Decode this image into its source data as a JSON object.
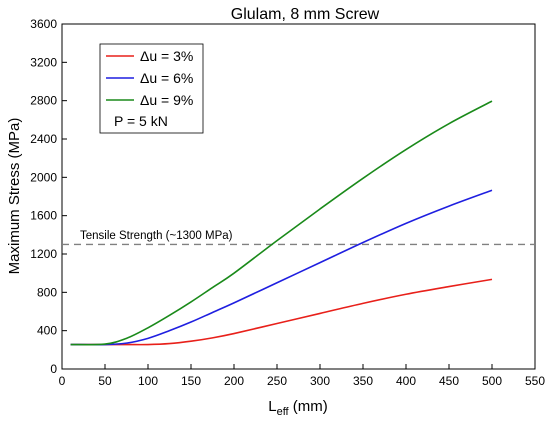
{
  "chart_data": {
    "type": "line",
    "title": "Glulam, 8 mm Screw",
    "xlabel_main": "L",
    "xlabel_sub": "eff",
    "xlabel_unit": " (mm)",
    "ylabel": "Maximum Stress (MPa)",
    "xlim": [
      0,
      550
    ],
    "ylim": [
      0,
      3600
    ],
    "xticks": [
      0,
      50,
      100,
      150,
      200,
      250,
      300,
      350,
      400,
      450,
      500,
      550
    ],
    "yticks": [
      0,
      400,
      800,
      1200,
      1600,
      2000,
      2400,
      2800,
      3200,
      3600
    ],
    "grid": false,
    "legend_position": "top-left",
    "series": [
      {
        "name": "Δu = 3%",
        "color": "#e8201a",
        "x": [
          10,
          50,
          75,
          100,
          125,
          150,
          175,
          200,
          250,
          300,
          350,
          400,
          450,
          500
        ],
        "y": [
          255,
          255,
          255,
          255,
          265,
          290,
          325,
          370,
          475,
          580,
          685,
          780,
          860,
          935
        ]
      },
      {
        "name": "Δu = 6%",
        "color": "#1f1fe0",
        "x": [
          10,
          50,
          75,
          100,
          125,
          150,
          175,
          200,
          250,
          300,
          350,
          400,
          450,
          500
        ],
        "y": [
          255,
          255,
          270,
          320,
          400,
          490,
          590,
          690,
          900,
          1110,
          1320,
          1520,
          1700,
          1865
        ]
      },
      {
        "name": "Δu = 9%",
        "color": "#1a8a1a",
        "x": [
          10,
          50,
          75,
          100,
          125,
          150,
          175,
          200,
          250,
          300,
          350,
          400,
          450,
          500
        ],
        "y": [
          255,
          260,
          320,
          430,
          560,
          700,
          850,
          1000,
          1340,
          1670,
          1990,
          2290,
          2560,
          2795
        ]
      }
    ],
    "legend_extra": "P = 5 kN",
    "reference_line": {
      "label": "Tensile Strength (~1300 MPa)",
      "value": 1300,
      "color": "#808080"
    }
  }
}
